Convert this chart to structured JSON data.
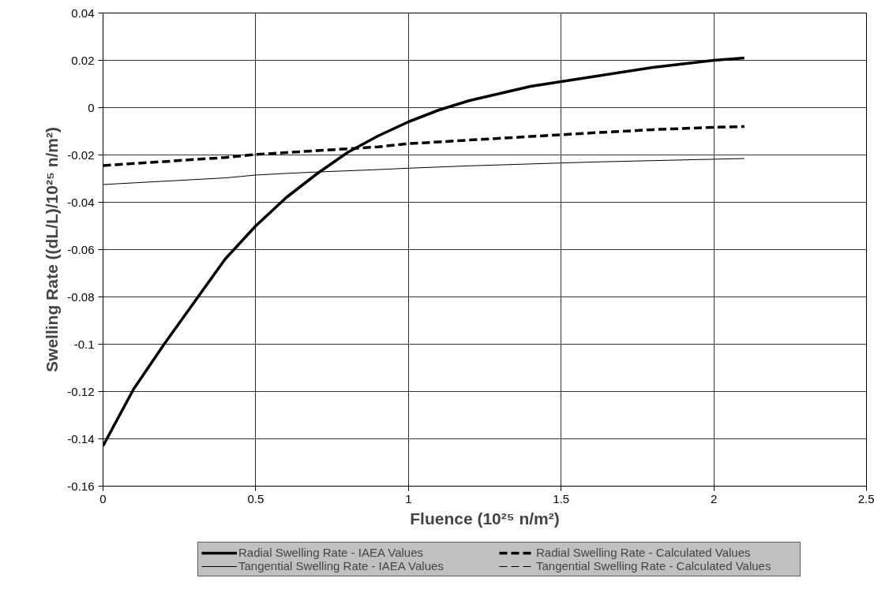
{
  "chart_data": {
    "type": "line",
    "xlabel": "Fluence (10²⁵ n/m²)",
    "ylabel": "Swelling Rate ((dL/L)/10²⁵ n/m²)",
    "x": [
      0,
      0.1,
      0.2,
      0.3,
      0.4,
      0.5,
      0.6,
      0.7,
      0.8,
      0.9,
      1.0,
      1.1,
      1.2,
      1.4,
      1.6,
      1.8,
      2.0,
      2.1
    ],
    "series": [
      {
        "name": "Radial Swelling Rate - IAEA Values",
        "color": "#000000",
        "line_style": "solid",
        "values": [
          -0.143,
          -0.119,
          -0.1,
          -0.082,
          -0.064,
          -0.05,
          -0.038,
          -0.028,
          -0.019,
          -0.012,
          -0.006,
          -0.001,
          0.003,
          0.009,
          0.013,
          0.017,
          0.02,
          0.021
        ]
      },
      {
        "name": "Tangential Swelling Rate - IAEA Values",
        "color": "#000000",
        "line_style": "solid",
        "values": [
          -0.0325,
          -0.0318,
          -0.0311,
          -0.0304,
          -0.0297,
          -0.0285,
          -0.0278,
          -0.0272,
          -0.0267,
          -0.0262,
          -0.0256,
          -0.0251,
          -0.0246,
          -0.0238,
          -0.023,
          -0.0224,
          -0.0218,
          -0.0215
        ]
      },
      {
        "name": "Radial Swelling Rate - Calculated Values",
        "color": "#000000",
        "line_style": "dashed",
        "values": [
          -0.0245,
          -0.0236,
          -0.0228,
          -0.0219,
          -0.0211,
          -0.0198,
          -0.019,
          -0.0182,
          -0.0174,
          -0.0166,
          -0.0152,
          -0.0145,
          -0.0137,
          -0.0122,
          -0.0107,
          -0.0093,
          -0.0083,
          -0.008
        ]
      },
      {
        "name": "Tangential Swelling Rate - Calculated Values",
        "color": "#000000",
        "line_style": "dashed",
        "values": [
          -0.0245,
          -0.0236,
          -0.0228,
          -0.0219,
          -0.0211,
          -0.0198,
          -0.019,
          -0.0182,
          -0.0174,
          -0.0166,
          -0.0152,
          -0.0145,
          -0.0137,
          -0.0122,
          -0.0107,
          -0.0093,
          -0.0083,
          -0.008
        ]
      }
    ],
    "xlim": [
      0,
      2.5
    ],
    "xticks": [
      0,
      0.5,
      1,
      1.5,
      2,
      2.5
    ],
    "ylim": [
      -0.16,
      0.04
    ],
    "yticks": [
      -0.16,
      -0.14,
      -0.12,
      -0.1,
      -0.08,
      -0.06,
      -0.04,
      -0.02,
      0,
      0.02,
      0.04
    ],
    "grid": true,
    "legend": "bottom",
    "marker": "none"
  }
}
